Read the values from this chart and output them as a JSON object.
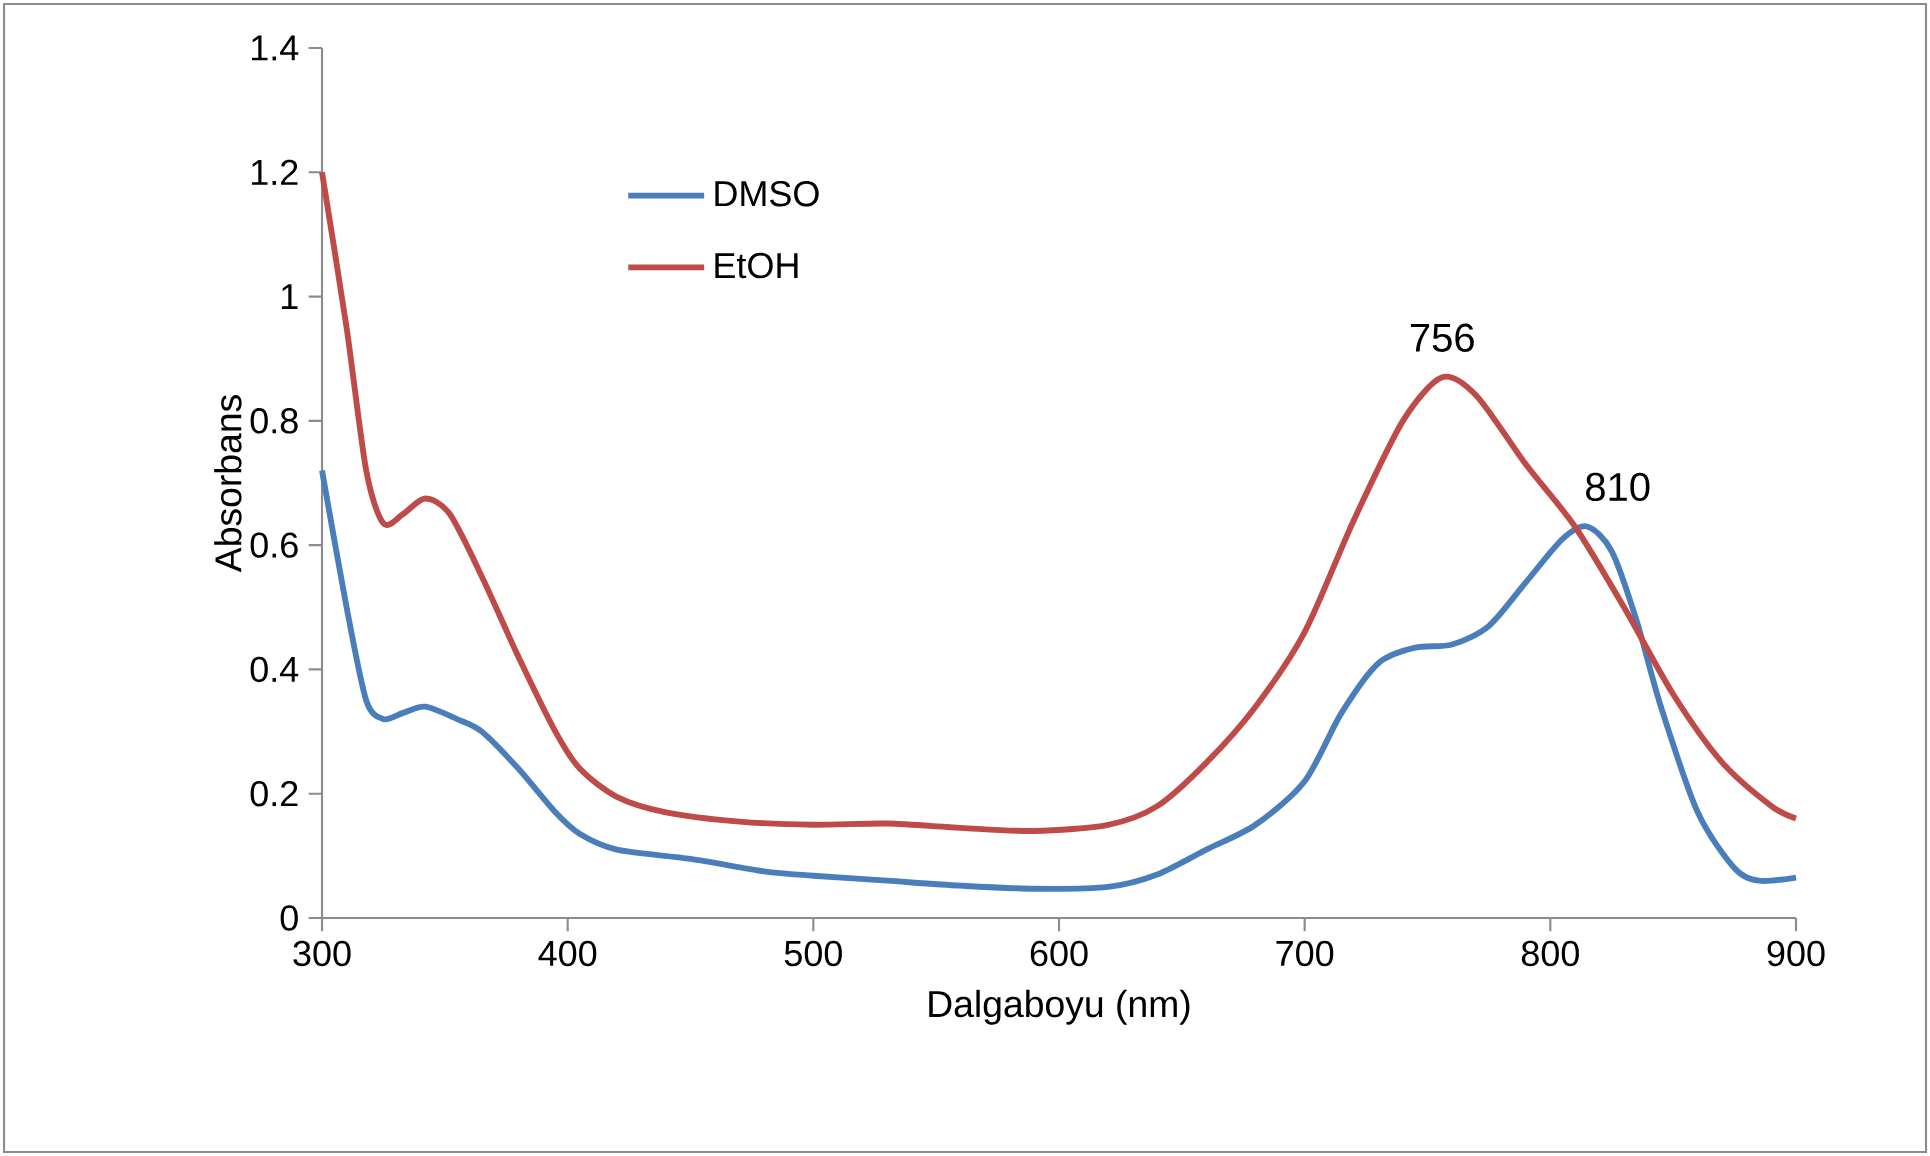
{
  "chart_data": {
    "type": "line",
    "xlabel": "Dalgaboyu (nm)",
    "ylabel": "Absorbans",
    "xlim": [
      300,
      900
    ],
    "xticks": [
      300,
      400,
      500,
      600,
      700,
      800,
      900
    ],
    "ylim": [
      0,
      1.4
    ],
    "yticks": [
      0,
      0.2,
      0.4,
      0.6,
      0.8,
      1,
      1.2,
      1.4
    ],
    "grid": false,
    "legend": "top left",
    "marker": "none",
    "line_style": "solid",
    "annotations": [
      {
        "text": "756",
        "x": 756,
        "y": 0.87
      },
      {
        "text": "810",
        "x": 810,
        "y": 0.63
      }
    ],
    "series": [
      {
        "name": "DMSO",
        "color": "#4a7ebb",
        "x": [
          300,
          310,
          318,
          325,
          333,
          342,
          355,
          365,
          380,
          395,
          405,
          420,
          450,
          480,
          500,
          530,
          560,
          590,
          620,
          640,
          660,
          680,
          700,
          715,
          730,
          745,
          760,
          775,
          790,
          805,
          815,
          825,
          835,
          845,
          860,
          875,
          885,
          900
        ],
        "values": [
          0.72,
          0.5,
          0.35,
          0.32,
          0.33,
          0.34,
          0.32,
          0.3,
          0.24,
          0.17,
          0.135,
          0.11,
          0.095,
          0.075,
          0.068,
          0.06,
          0.052,
          0.047,
          0.05,
          0.07,
          0.11,
          0.15,
          0.22,
          0.33,
          0.41,
          0.435,
          0.44,
          0.47,
          0.54,
          0.61,
          0.63,
          0.59,
          0.48,
          0.34,
          0.17,
          0.08,
          0.06,
          0.065
        ]
      },
      {
        "name": "EtOH",
        "color": "#be4b48",
        "x": [
          300,
          310,
          318,
          325,
          333,
          342,
          352,
          365,
          380,
          395,
          405,
          420,
          440,
          470,
          500,
          530,
          560,
          590,
          620,
          640,
          660,
          680,
          700,
          720,
          740,
          756,
          770,
          790,
          810,
          830,
          850,
          870,
          890,
          900
        ],
        "values": [
          1.2,
          0.95,
          0.72,
          0.635,
          0.65,
          0.675,
          0.65,
          0.55,
          0.42,
          0.3,
          0.24,
          0.195,
          0.17,
          0.155,
          0.15,
          0.152,
          0.145,
          0.14,
          0.15,
          0.18,
          0.25,
          0.34,
          0.46,
          0.64,
          0.8,
          0.87,
          0.84,
          0.73,
          0.63,
          0.5,
          0.36,
          0.25,
          0.18,
          0.16
        ]
      }
    ]
  }
}
